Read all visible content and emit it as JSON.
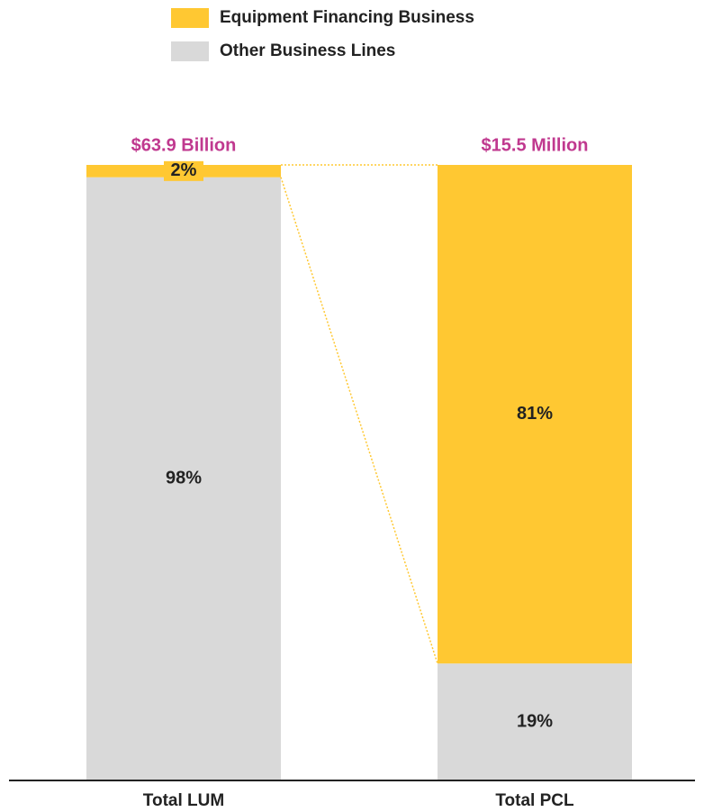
{
  "chart_data": {
    "type": "stacked-bar",
    "categories": [
      "Total LUM",
      "Total PCL"
    ],
    "annotations": [
      "$63.9 Billion",
      "$15.5 Million"
    ],
    "series": [
      {
        "name": "Other Business Lines",
        "color": "#d9d9d9",
        "values": [
          98,
          19
        ],
        "value_labels": [
          "98%",
          "19%"
        ]
      },
      {
        "name": "Equipment Financing Business",
        "color": "#ffc832",
        "values": [
          2,
          81
        ],
        "value_labels": [
          "2%",
          "81%"
        ]
      }
    ],
    "ylim": [
      0,
      100
    ],
    "legend": "top"
  }
}
